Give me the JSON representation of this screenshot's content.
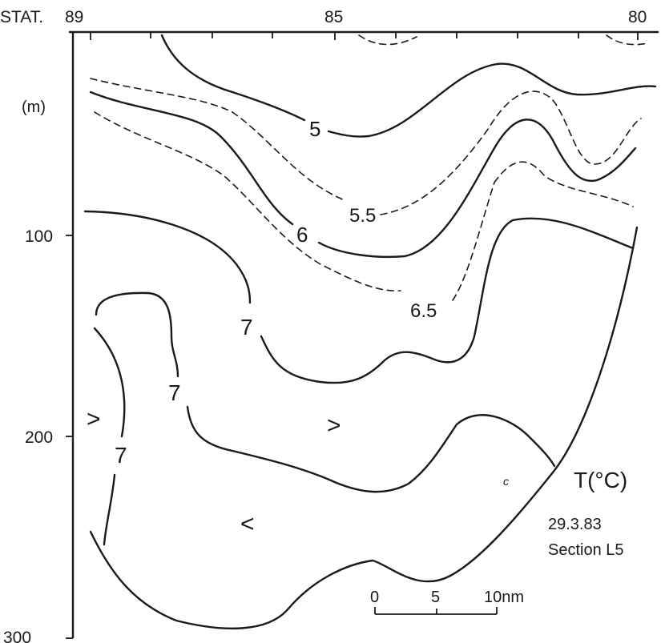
{
  "figure": {
    "station_header": "STAT.",
    "station_labels": [
      "89",
      "85",
      "80"
    ],
    "depth_unit": "(m)",
    "depth_labels": [
      "100",
      "200",
      "300"
    ],
    "isotherm_labels": {
      "c5": "5",
      "c5_5": "5.5",
      "c6": "6",
      "c6_5": "6.5",
      "c7_a": "7",
      "c7_b": "7",
      "c7_c": "7"
    },
    "direction_marks": {
      "left_mid": ">",
      "center_mid": ">",
      "lower_left": "<"
    },
    "parameter": "T(°C)",
    "date": "29.3.83",
    "section": "Section L5",
    "scale_bar": {
      "labels": [
        "0",
        "5",
        "10nm"
      ]
    },
    "stray_mark": "c"
  }
}
